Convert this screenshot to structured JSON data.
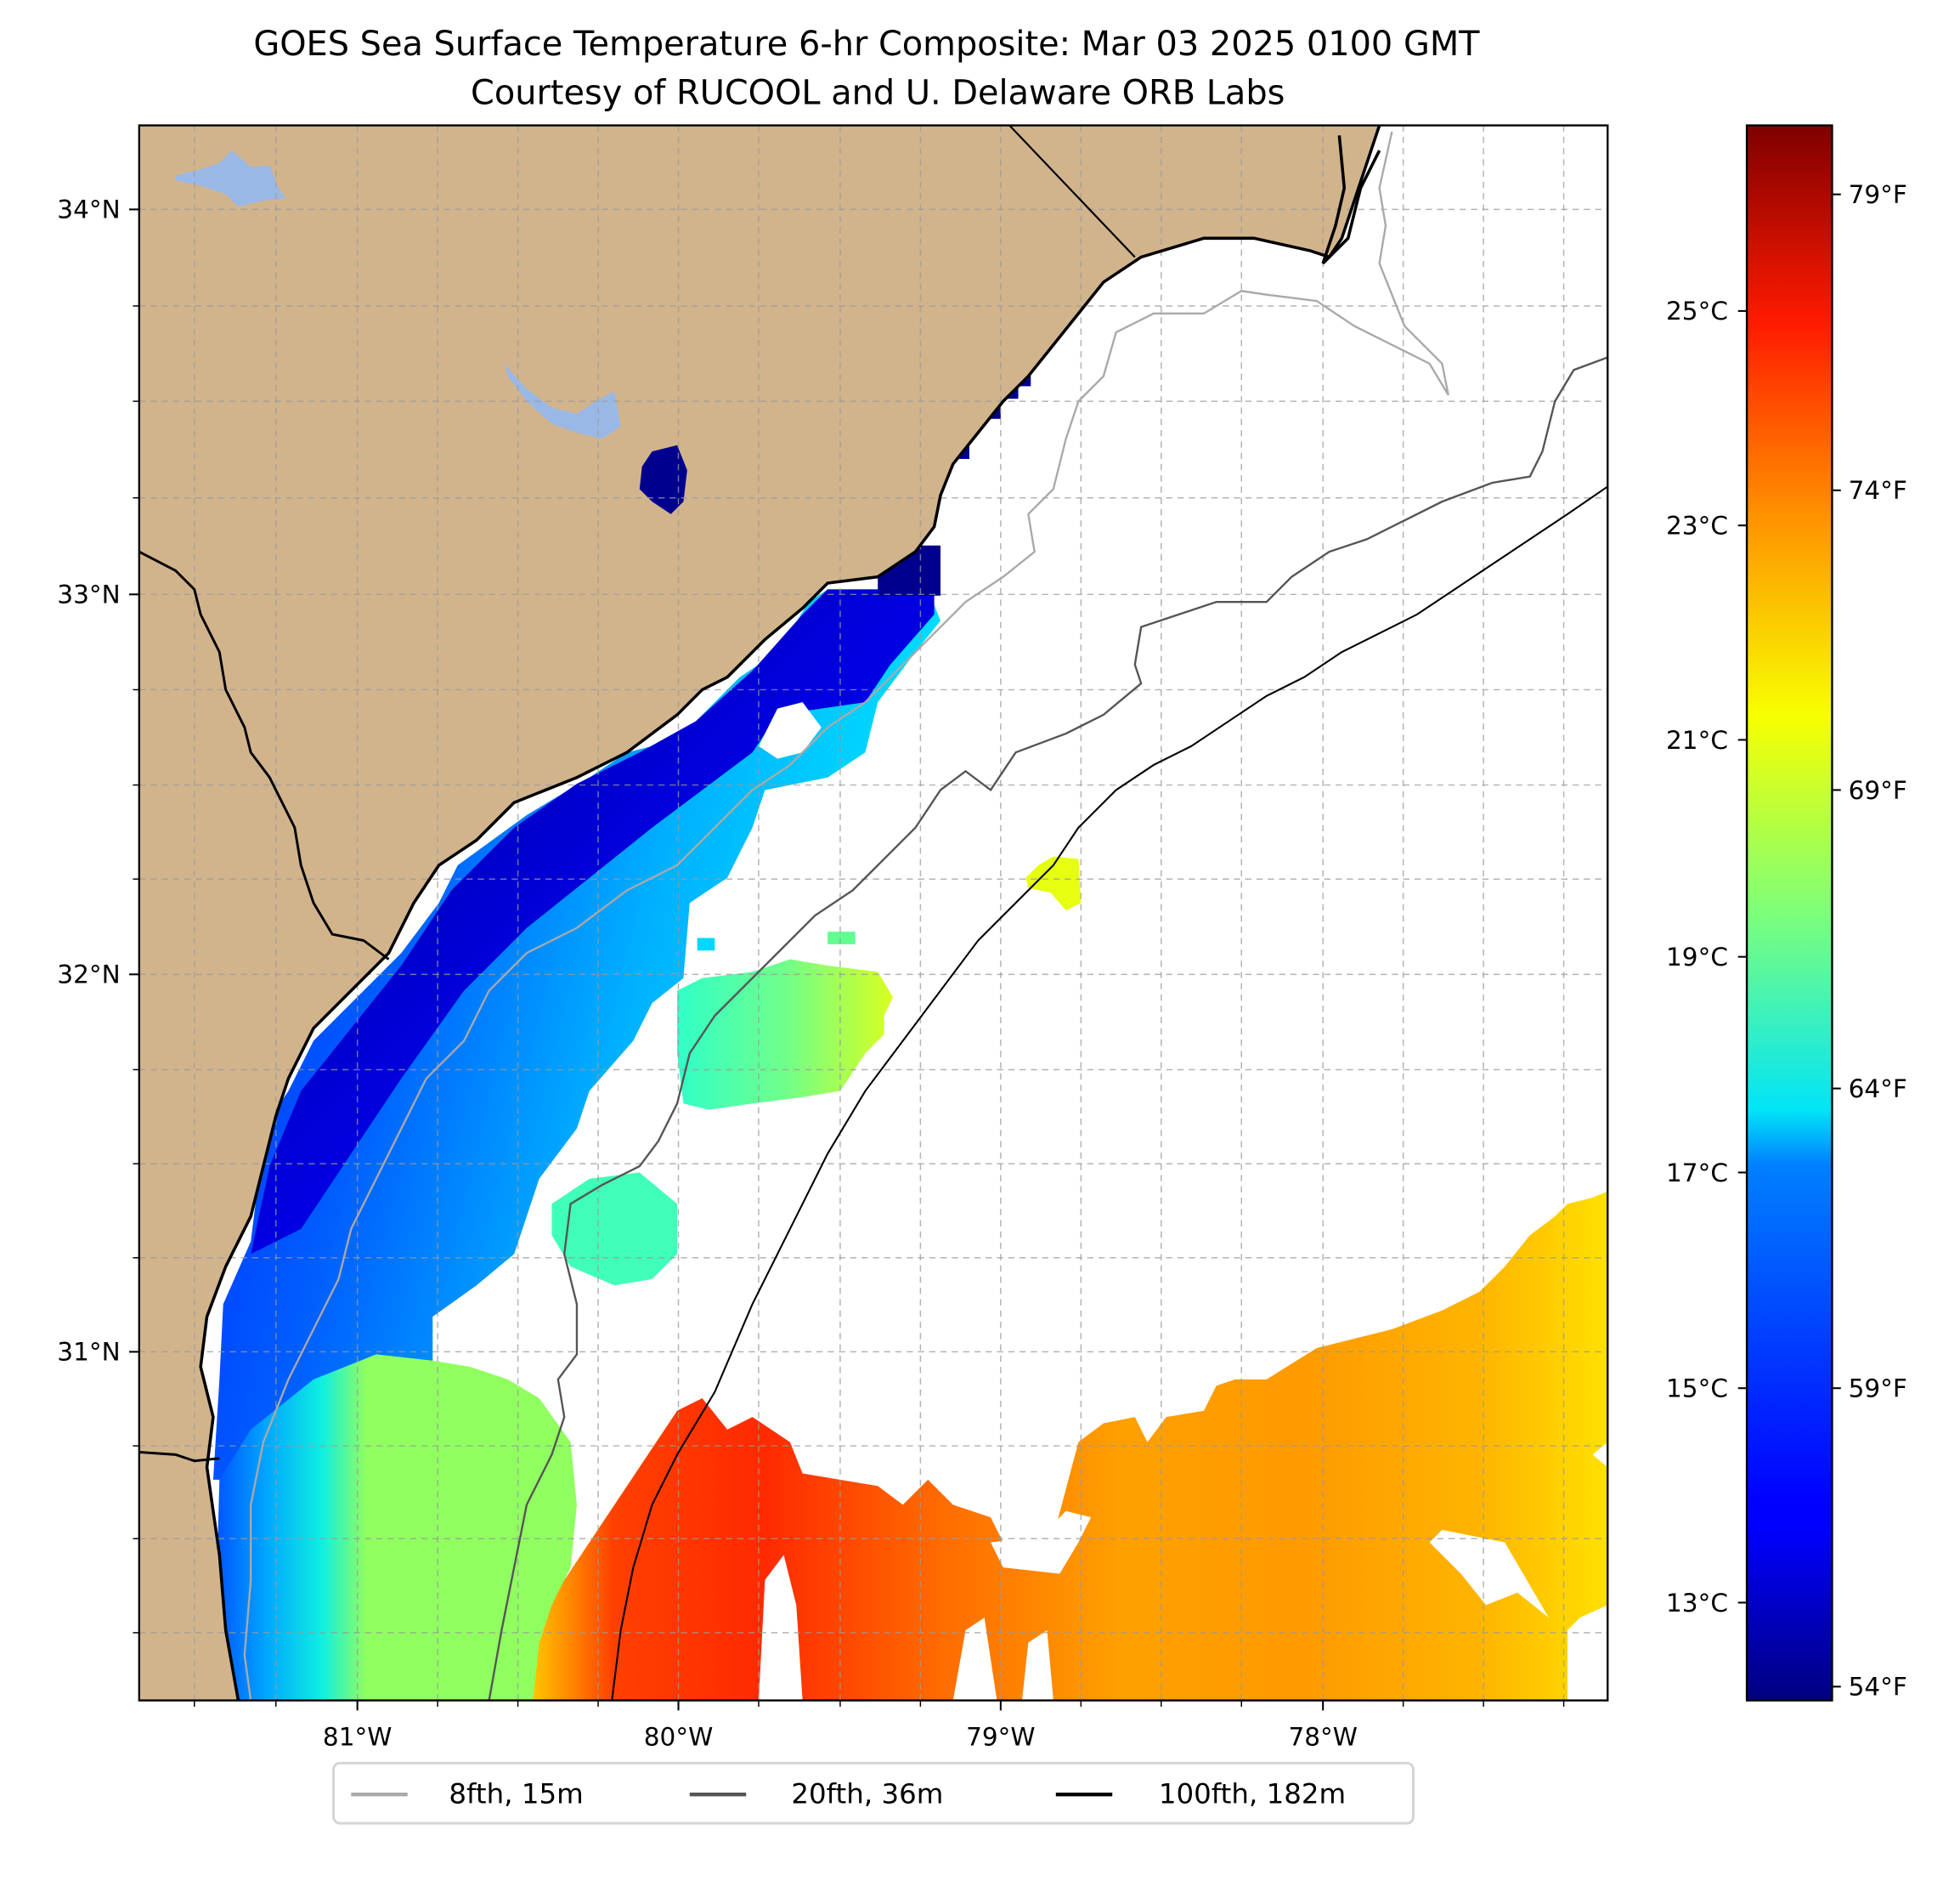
{
  "title": {
    "line1": "GOES Sea Surface Temperature 6-hr Composite: Mar 03 2025 0100 GMT",
    "line2": "Courtesy of RUCOOL and U. Delaware ORB Labs"
  },
  "map": {
    "lat_labels": [
      "34°N",
      "33°N",
      "32°N",
      "31°N"
    ],
    "lon_labels": [
      "81°W",
      "80°W",
      "79°W",
      "78°W"
    ],
    "land_color": "#d2b48c",
    "lake_color": "#9ab8e6",
    "no_data_color": "#ffffff"
  },
  "colorbar": {
    "celsius_ticks": [
      "25°C",
      "23°C",
      "21°C",
      "19°C",
      "17°C",
      "15°C",
      "13°C"
    ],
    "fahrenheit_ticks": [
      "79°F",
      "74°F",
      "69°F",
      "64°F",
      "59°F",
      "54°F"
    ],
    "colormap": "jet"
  },
  "legend": {
    "items": [
      {
        "label": "8fth, 15m",
        "color": "#a9a9a9"
      },
      {
        "label": "20fth, 36m",
        "color": "#555555"
      },
      {
        "label": "100fth, 182m",
        "color": "#000000"
      }
    ]
  },
  "chart_data": {
    "type": "heatmap",
    "title": "GOES Sea Surface Temperature 6-hr Composite: Mar 03 2025 0100 GMT",
    "subtitle": "Courtesy of RUCOOL and U. Delaware ORB Labs",
    "xlabel": "",
    "ylabel": "",
    "x_ticks": [
      "81°W",
      "80°W",
      "79°W",
      "78°W"
    ],
    "y_ticks": [
      "34°N",
      "33°N",
      "32°N",
      "31°N"
    ],
    "xlim": [
      -81.68,
      -77.12
    ],
    "ylim": [
      30.1,
      34.22
    ],
    "grid": true,
    "colorbar_range_c": [
      12.2,
      26.6
    ],
    "colorbar_ticks_c": [
      25,
      23,
      21,
      19,
      17,
      15,
      13
    ],
    "colorbar_ticks_f": [
      79,
      74,
      69,
      64,
      59,
      54
    ],
    "legend_placement": "bottom-center",
    "legend": [
      "8fth, 15m",
      "20fth, 36m",
      "100fth, 182m"
    ]
  }
}
